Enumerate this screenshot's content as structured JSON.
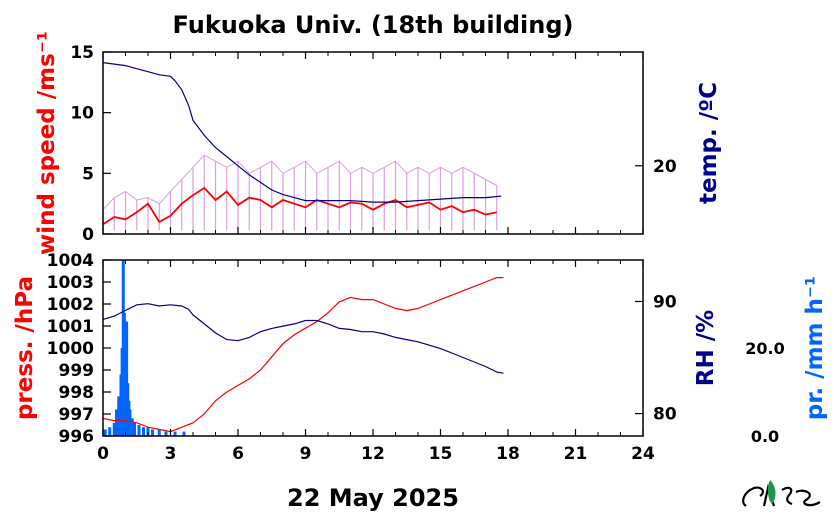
{
  "title": "Fukuoka Univ. (18th building)",
  "date_label": "22 May 2025",
  "colors": {
    "wind_gust": "#d9a0dc",
    "wind_mean": "#ff0000",
    "temperature": "#00008b",
    "pressure": "#ff0000",
    "humidity": "#00008b",
    "precip": "#0066ff",
    "axis": "#000000"
  },
  "chart_data": [
    {
      "type": "line",
      "panel": "top",
      "x_ticks": [
        "0",
        "3",
        "6",
        "9",
        "12",
        "15",
        "18",
        "21",
        "24"
      ],
      "xlim": [
        0,
        24
      ],
      "left_axis": {
        "label": "wind speed /ms⁻¹",
        "ylim": [
          0,
          15
        ],
        "ticks": [
          "0",
          "5",
          "10",
          "15"
        ]
      },
      "right_axis": {
        "label": "temp. /ºC",
        "ylim": [
          15.5,
          27.5
        ],
        "ticks": [
          "20"
        ]
      },
      "series": [
        {
          "axis": "left",
          "style": "gust",
          "x": [
            0,
            0.5,
            1,
            1.5,
            2,
            2.5,
            3,
            3.5,
            4,
            4.5,
            5,
            5.5,
            6,
            6.5,
            7,
            7.5,
            8,
            8.5,
            9,
            9.5,
            10,
            10.5,
            11,
            11.5,
            12,
            12.5,
            13,
            13.5,
            14,
            14.5,
            15,
            15.5,
            16,
            16.5,
            17,
            17.5
          ],
          "values": [
            2.0,
            3.0,
            3.5,
            2.8,
            3.0,
            2.5,
            3.5,
            4.5,
            5.5,
            6.5,
            6.0,
            5.5,
            6.0,
            5.0,
            5.5,
            6.0,
            5.0,
            5.5,
            6.0,
            5.0,
            5.5,
            6.0,
            5.0,
            5.5,
            5.0,
            5.5,
            6.0,
            5.0,
            5.5,
            5.0,
            5.5,
            5.0,
            5.5,
            5.0,
            4.5,
            4.0
          ]
        },
        {
          "axis": "left",
          "style": "mean",
          "x": [
            0,
            0.5,
            1,
            1.5,
            2,
            2.5,
            3,
            3.5,
            4,
            4.5,
            5,
            5.5,
            6,
            6.5,
            7,
            7.5,
            8,
            8.5,
            9,
            9.5,
            10,
            10.5,
            11,
            11.5,
            12,
            12.5,
            13,
            13.5,
            14,
            14.5,
            15,
            15.5,
            16,
            16.5,
            17,
            17.5
          ],
          "values": [
            0.8,
            1.4,
            1.2,
            1.8,
            2.5,
            1.0,
            1.5,
            2.5,
            3.2,
            3.8,
            2.8,
            3.5,
            2.4,
            3.0,
            2.8,
            2.2,
            2.8,
            2.5,
            2.2,
            2.8,
            2.5,
            2.2,
            2.6,
            2.5,
            2.0,
            2.5,
            2.8,
            2.2,
            2.4,
            2.6,
            2.0,
            2.3,
            1.8,
            2.0,
            1.6,
            1.8
          ]
        },
        {
          "axis": "right",
          "style": "temp",
          "x": [
            0,
            0.5,
            1,
            1.5,
            2,
            2.5,
            3,
            3.2,
            3.5,
            3.8,
            4,
            4.5,
            5,
            5.5,
            6,
            6.5,
            7,
            7.5,
            8,
            8.5,
            9,
            10,
            11,
            12,
            13,
            14,
            15,
            16,
            17,
            17.7
          ],
          "values": [
            26.8,
            26.7,
            26.6,
            26.4,
            26.2,
            26.0,
            25.9,
            25.6,
            25.0,
            24.0,
            23.0,
            22.0,
            21.2,
            20.6,
            20.0,
            19.4,
            18.9,
            18.4,
            18.1,
            17.9,
            17.7,
            17.7,
            17.7,
            17.6,
            17.6,
            17.7,
            17.8,
            17.9,
            17.9,
            18.0
          ]
        }
      ]
    },
    {
      "type": "line",
      "panel": "bottom",
      "x_label": "22 May 2025",
      "x_ticks": [
        "0",
        "3",
        "6",
        "9",
        "12",
        "15",
        "18",
        "21",
        "24"
      ],
      "xlim": [
        0,
        24
      ],
      "left_axis": {
        "label": "press. /hPa",
        "ylim": [
          996,
          1004
        ],
        "ticks": [
          "996",
          "997",
          "998",
          "999",
          "1000",
          "1001",
          "1002",
          "1003",
          "1004"
        ]
      },
      "right_axis": {
        "label": "RH /%",
        "ylim": [
          78,
          93.7
        ],
        "ticks": [
          "80",
          "90"
        ]
      },
      "precip_axis": {
        "label": "pr. /mm h⁻¹",
        "ylim": [
          0,
          40
        ],
        "ticks": [
          "0.0",
          "20.0"
        ]
      },
      "series": [
        {
          "axis": "left",
          "style": "pressure",
          "x": [
            0,
            0.5,
            1,
            1.5,
            2,
            2.5,
            3,
            3.5,
            4,
            4.5,
            5,
            5.5,
            6,
            6.5,
            7,
            7.5,
            8,
            8.5,
            9,
            9.5,
            10,
            10.5,
            11,
            11.5,
            12,
            12.5,
            13,
            13.5,
            14,
            14.5,
            15,
            15.5,
            16,
            16.5,
            17,
            17.5,
            17.8
          ],
          "values": [
            996.8,
            996.7,
            996.7,
            996.6,
            996.4,
            996.3,
            996.2,
            996.4,
            996.6,
            997.0,
            997.6,
            998.0,
            998.3,
            998.6,
            999.0,
            999.6,
            1000.2,
            1000.6,
            1000.9,
            1001.2,
            1001.6,
            1002.1,
            1002.3,
            1002.2,
            1002.2,
            1002.0,
            1001.8,
            1001.7,
            1001.8,
            1002.0,
            1002.2,
            1002.4,
            1002.6,
            1002.8,
            1003.0,
            1003.2,
            1003.2
          ]
        },
        {
          "axis": "right",
          "style": "rh",
          "x": [
            0,
            0.5,
            1,
            1.5,
            2,
            2.5,
            3,
            3.5,
            3.8,
            4,
            4.5,
            5,
            5.5,
            6,
            6.5,
            7,
            7.5,
            8,
            8.5,
            9,
            9.5,
            10,
            10.5,
            11,
            11.5,
            12,
            12.5,
            13,
            13.5,
            14,
            14.5,
            15,
            15.5,
            16,
            16.5,
            17,
            17.5,
            17.8
          ],
          "values": [
            88.4,
            88.7,
            89.2,
            89.7,
            89.8,
            89.6,
            89.7,
            89.6,
            89.3,
            88.8,
            88.0,
            87.2,
            86.6,
            86.5,
            86.8,
            87.3,
            87.6,
            87.8,
            88.0,
            88.3,
            88.3,
            88.0,
            87.6,
            87.5,
            87.3,
            87.3,
            87.1,
            86.8,
            86.6,
            86.4,
            86.1,
            85.8,
            85.4,
            85.0,
            84.6,
            84.2,
            83.7,
            83.6
          ]
        },
        {
          "axis": "precip",
          "style": "precip",
          "x": [
            0.1,
            0.3,
            0.5,
            0.6,
            0.7,
            0.8,
            0.85,
            0.9,
            0.95,
            1.0,
            1.05,
            1.1,
            1.15,
            1.2,
            1.3,
            1.4,
            1.6,
            1.8,
            2.0,
            2.2,
            2.5,
            2.8,
            3.2,
            3.6
          ],
          "values": [
            1.5,
            2.0,
            3.0,
            6.0,
            9.0,
            14.0,
            20.0,
            40.0,
            28.0,
            18.0,
            26.0,
            12.0,
            8.0,
            6.0,
            4.0,
            3.0,
            2.5,
            2.0,
            2.0,
            1.5,
            1.5,
            1.0,
            1.0,
            1.0
          ]
        }
      ]
    }
  ]
}
